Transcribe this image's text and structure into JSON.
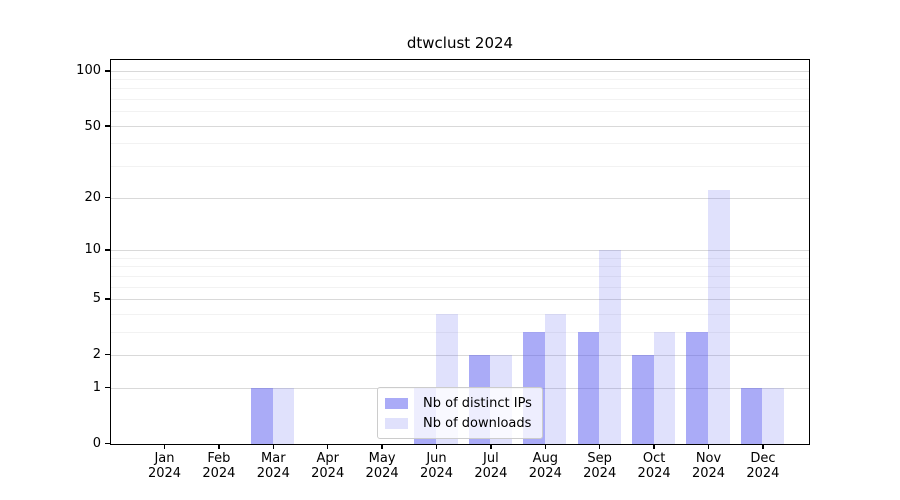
{
  "chart_data": {
    "type": "bar",
    "title": "dtwclust 2024",
    "categories": [
      "Jan 2024",
      "Feb 2024",
      "Mar 2024",
      "Apr 2024",
      "May 2024",
      "Jun 2024",
      "Jul 2024",
      "Aug 2024",
      "Sep 2024",
      "Oct 2024",
      "Nov 2024",
      "Dec 2024"
    ],
    "series": [
      {
        "name": "Nb of distinct IPs",
        "values": [
          0,
          0,
          1,
          0,
          0,
          1,
          2,
          3,
          3,
          2,
          3,
          1
        ],
        "color": "rgba(85,87,239,0.5)",
        "color_on_white": "#aaabf7"
      },
      {
        "name": "Nb of downloads",
        "values": [
          0,
          0,
          1,
          0,
          0,
          4,
          2,
          4,
          10,
          3,
          22,
          1
        ],
        "color": "rgba(85,87,239,0.18)",
        "color_on_white": "#dcddfb"
      }
    ],
    "xlabel": "",
    "ylabel": "",
    "y_scale": "log1p",
    "y_major_ticks": [
      0,
      1,
      2,
      5,
      10,
      20,
      50,
      100
    ],
    "y_major_tick_labels": [
      "0",
      "1",
      "2",
      "5",
      "10",
      "20",
      "50",
      "100"
    ],
    "y_minor_gridlines": [
      3,
      4,
      6,
      7,
      8,
      9,
      30,
      40,
      60,
      70,
      80,
      90
    ],
    "ylim": [
      0,
      114
    ],
    "grid": true,
    "legend_position": "inside-lower-center"
  },
  "colors": {
    "axis": "#000000",
    "major_grid": "#d9d9d9",
    "minor_grid": "#f2f2f2",
    "legend_border": "#cccccc",
    "legend_background": "rgba(255,255,255,0.8)",
    "bar_base": "#5557ef"
  }
}
